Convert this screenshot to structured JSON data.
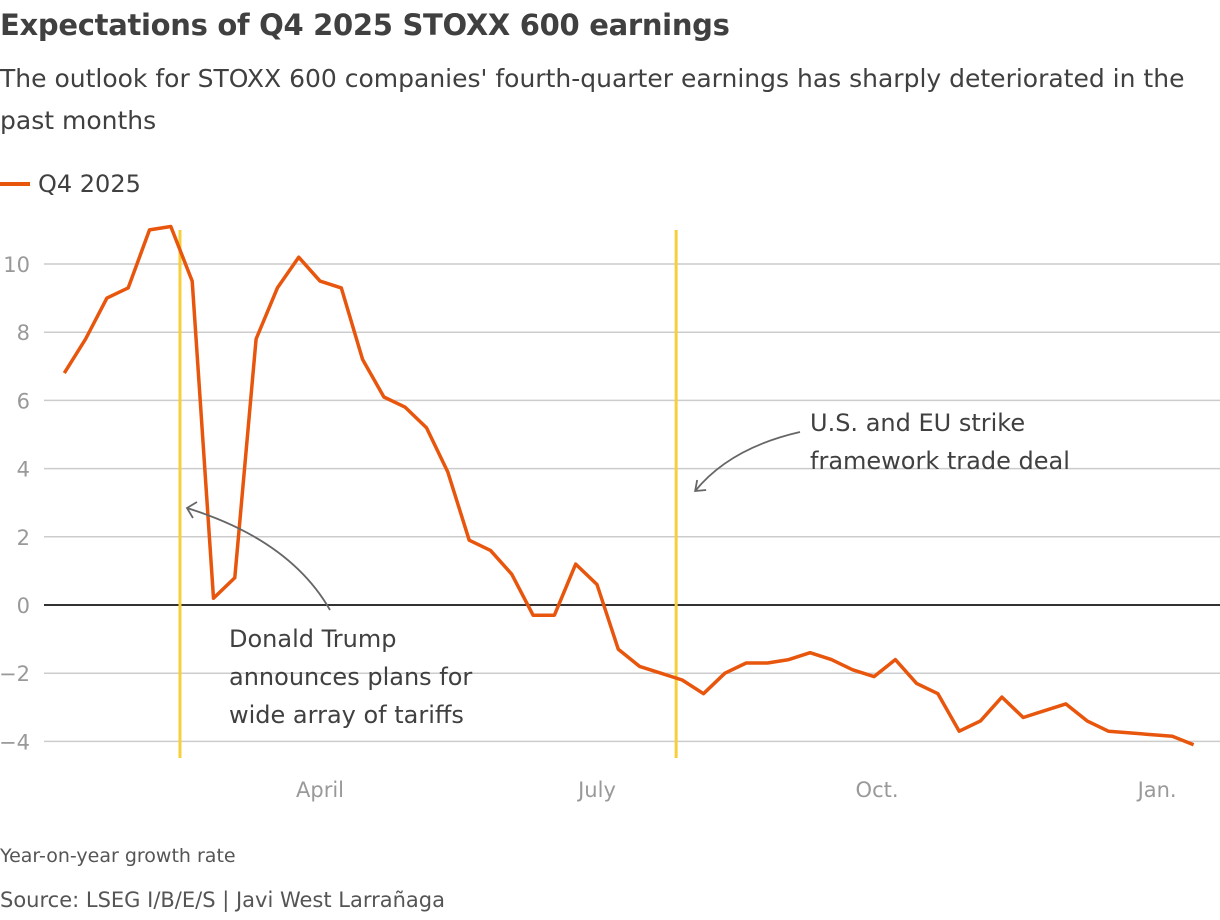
{
  "title": "Expectations of Q4 2025 STOXX 600 earnings",
  "subtitle": "The outlook for STOXX 600 companies' fourth-quarter earnings has sharply deteriorated in the past months",
  "note": "Year-on-year growth rate",
  "source": "Source: LSEG I/B/E/S | Javi West Larrañaga",
  "colors": {
    "series": "#e8560e",
    "event_line": "#f7cf3a",
    "grid": "#cccccc",
    "zero_line": "#333333",
    "arrow": "#666666"
  },
  "chart_data": {
    "type": "line",
    "title": "Expectations of Q4 2025 STOXX 600 earnings",
    "xlabel": "",
    "ylabel": "",
    "ylim": [
      -4.6,
      11.4
    ],
    "y_ticks": [
      -4,
      -2,
      0,
      2,
      4,
      6,
      8,
      10
    ],
    "y_tick_labels": [
      "−4",
      "−2",
      "0",
      "2",
      "4",
      "6",
      "8",
      "10"
    ],
    "x_ticks": [
      {
        "date": "2025-04-01",
        "label": "April"
      },
      {
        "date": "2025-07-01",
        "label": "July"
      },
      {
        "date": "2025-10-01",
        "label": "Oct."
      },
      {
        "date": "2026-01-01",
        "label": "Jan."
      }
    ],
    "grid": "horizontal",
    "legend": "top-left",
    "x": [
      "2025-01-07",
      "2025-01-14",
      "2025-01-21",
      "2025-01-28",
      "2025-02-04",
      "2025-02-11",
      "2025-02-18",
      "2025-02-25",
      "2025-03-04",
      "2025-03-11",
      "2025-03-18",
      "2025-03-25",
      "2025-04-01",
      "2025-04-08",
      "2025-04-15",
      "2025-04-22",
      "2025-04-29",
      "2025-05-06",
      "2025-05-13",
      "2025-05-20",
      "2025-05-27",
      "2025-06-03",
      "2025-06-10",
      "2025-06-17",
      "2025-06-24",
      "2025-07-01",
      "2025-07-08",
      "2025-07-15",
      "2025-07-22",
      "2025-07-29",
      "2025-08-05",
      "2025-08-12",
      "2025-08-19",
      "2025-08-26",
      "2025-09-02",
      "2025-09-09",
      "2025-09-16",
      "2025-09-23",
      "2025-09-30",
      "2025-10-07",
      "2025-10-14",
      "2025-10-21",
      "2025-10-28",
      "2025-11-04",
      "2025-11-11",
      "2025-11-18",
      "2025-11-25",
      "2025-12-02",
      "2025-12-09",
      "2025-12-16",
      "2025-12-23",
      "2025-12-30",
      "2026-01-06",
      "2026-01-13"
    ],
    "series": [
      {
        "name": "Q4 2025",
        "values": [
          6.8,
          7.8,
          9.0,
          9.3,
          11.0,
          11.1,
          9.5,
          0.2,
          0.8,
          7.8,
          9.3,
          10.2,
          9.5,
          9.3,
          7.2,
          6.1,
          5.8,
          5.2,
          3.9,
          1.9,
          1.6,
          0.9,
          -0.3,
          -0.3,
          1.2,
          0.6,
          -1.3,
          -1.8,
          -2.0,
          -2.2,
          -2.6,
          -2.0,
          -1.7,
          -1.7,
          -1.6,
          -1.4,
          -1.6,
          -1.9,
          -2.1,
          -1.6,
          -2.3,
          -2.6,
          -3.7,
          -3.4,
          -2.7,
          -3.3,
          -3.1,
          -2.9,
          -3.4,
          -3.7,
          -3.75,
          -3.8,
          -3.85,
          -4.1
        ]
      }
    ],
    "annotations": [
      {
        "date": "2025-02-14",
        "text_lines": [
          "Donald Trump",
          "announces plans for",
          "wide array of tariffs"
        ]
      },
      {
        "date": "2025-07-27",
        "text_lines": [
          "U.S. and EU strike",
          "framework trade deal"
        ]
      }
    ]
  }
}
